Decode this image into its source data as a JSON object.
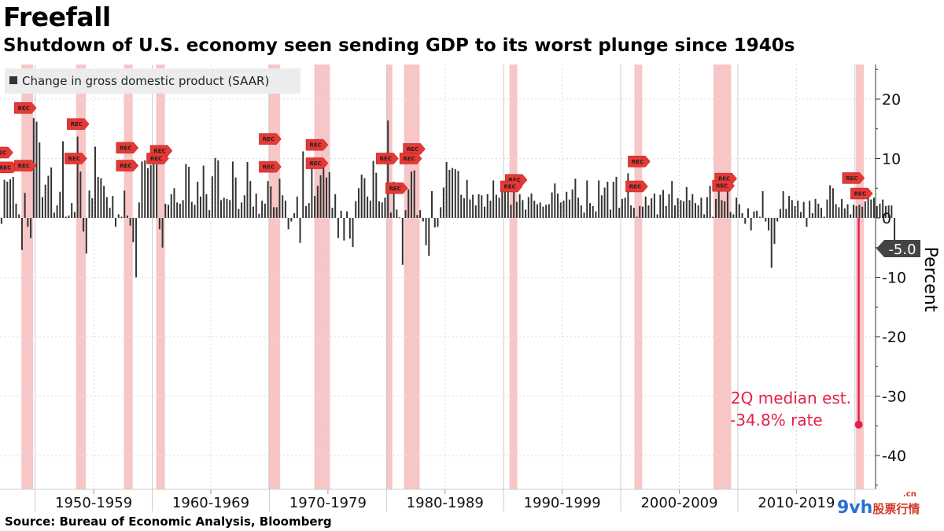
{
  "header": {
    "title": "Freefall",
    "subtitle": "Shutdown of U.S. economy seen sending GDP to its worst plunge since 1940s"
  },
  "footer": {
    "source": "Source: Bureau of Economic Analysis, Bloomberg"
  },
  "watermark": {
    "main": "9vh",
    "sub": "股票行情",
    "tld": ".cn"
  },
  "chart_data": {
    "type": "bar",
    "title": "Freefall",
    "subtitle": "Shutdown of U.S. economy seen sending GDP to its worst plunge since 1940s",
    "legend": "Change in gross domestic product (SAAR)",
    "legend_position": "top-left",
    "ylabel": "Percent",
    "ylim": [
      -45,
      26
    ],
    "yticks": [
      20,
      10,
      0,
      -10,
      -20,
      -30,
      -40
    ],
    "ytick_labels": [
      "20",
      "10",
      "0",
      "-10",
      "-20",
      "-30",
      "-40"
    ],
    "x_start": 1947.0,
    "x_end": 2020.75,
    "decade_labels": [
      "1950-1959",
      "1960-1969",
      "1970-1979",
      "1980-1989",
      "1990-1999",
      "2000-2009",
      "2010-2019"
    ],
    "decade_bounds": [
      1950,
      1960,
      1970,
      1980,
      1990,
      2000,
      2010,
      2020
    ],
    "series": [
      {
        "name": "Change in gross domestic product (SAAR)",
        "color": "#333333",
        "quarter_step": 0.25,
        "start": 1947.0,
        "values": [
          -1.0,
          6.4,
          6.1,
          6.5,
          6.9,
          2.4,
          0.6,
          -5.4,
          4.2,
          -1.5,
          -3.4,
          16.8,
          16.2,
          12.7,
          3.5,
          5.6,
          7.1,
          8.5,
          0.9,
          2.1,
          4.4,
          12.9,
          0.2,
          0.4,
          2.5,
          1.0,
          13.7,
          7.8,
          -2.3,
          -6.0,
          4.6,
          3.3,
          12.0,
          6.9,
          6.7,
          5.4,
          3.5,
          1.7,
          3.7,
          -1.5,
          0.6,
          0.2,
          4.6,
          0.4,
          -1.3,
          -4.1,
          -10.0,
          2.6,
          9.5,
          9.7,
          8.4,
          8.9,
          10.2,
          9.0,
          -1.9,
          -5.0,
          2.4,
          2.2,
          4.0,
          5.0,
          2.6,
          2.4,
          3.0,
          9.1,
          8.6,
          2.7,
          2.2,
          6.1,
          3.6,
          8.8,
          4.0,
          1.3,
          7.0,
          10.1,
          9.7,
          3.0,
          3.4,
          3.2,
          3.0,
          9.5,
          6.8,
          1.5,
          2.6,
          3.8,
          9.4,
          6.2,
          1.9,
          4.1,
          0.7,
          2.9,
          2.4,
          6.2,
          5.3,
          1.8,
          1.8,
          6.6,
          3.8,
          2.9,
          -1.9,
          -0.6,
          0.8,
          3.6,
          -4.2,
          11.2,
          2.0,
          2.5,
          10.1,
          3.7,
          5.4,
          7.2,
          9.9,
          6.8,
          7.7,
          1.7,
          4.0,
          -3.4,
          1.2,
          -3.8,
          1.1,
          -3.5,
          -4.9,
          2.8,
          5.0,
          7.3,
          6.7,
          3.6,
          2.9,
          9.6,
          7.6,
          2.8,
          2.6,
          3.4,
          16.4,
          0.9,
          6.1,
          1.4,
          0.1,
          -7.9,
          1.3,
          4.8,
          7.8,
          8.0,
          0.5,
          1.3,
          -0.6,
          -4.6,
          -6.4,
          4.5,
          -1.6,
          -1.5,
          1.8,
          5.1,
          9.4,
          8.1,
          8.4,
          8.2,
          7.9,
          3.9,
          3.3,
          6.4,
          3.1,
          3.9,
          2.1,
          4.0,
          3.8,
          1.9,
          4.0,
          2.9,
          6.3,
          3.9,
          3.4,
          4.4,
          5.4,
          4.5,
          2.2,
          5.3,
          2.7,
          4.0,
          3.0,
          1.4,
          3.5,
          4.1,
          2.9,
          2.3,
          2.6,
          1.9,
          2.2,
          2.3,
          4.3,
          5.8,
          4.1,
          2.6,
          2.9,
          4.4,
          3.1,
          4.8,
          6.6,
          3.4,
          2.1,
          0.9,
          6.3,
          2.5,
          2.0,
          1.1,
          6.3,
          3.8,
          5.1,
          6.1,
          1.4,
          6.1,
          6.9,
          1.7,
          3.2,
          3.4,
          7.5,
          2.1,
          1.7,
          0.2,
          2.0,
          1.9,
          3.6,
          2.1,
          3.3,
          4.1,
          0.6,
          3.9,
          4.7,
          2.0,
          4.0,
          6.2,
          2.1,
          3.3,
          3.0,
          2.8,
          5.2,
          3.0,
          4.0,
          2.5,
          2.1,
          3.4,
          0.6,
          3.5,
          5.4,
          0.2,
          3.2,
          6.2,
          3.0,
          2.8,
          7.3,
          1.0,
          0.6,
          3.4,
          2.3,
          0.8,
          -1.0,
          1.6,
          -2.1,
          1.1,
          1.2,
          0.2,
          4.5,
          -0.6,
          -2.1,
          -8.4,
          -4.4,
          -0.6,
          1.5,
          4.5,
          1.5,
          3.7,
          3.0,
          2.0,
          2.9,
          1.0,
          2.7,
          -1.5,
          2.9,
          0.8,
          3.2,
          2.4,
          1.7,
          0.2,
          3.1,
          5.5,
          5.0,
          2.3,
          1.8,
          3.2,
          1.6,
          2.3,
          0.6,
          2.2,
          2.0,
          2.2,
          1.9,
          2.8,
          3.5,
          3.1,
          3.4,
          2.0,
          2.4,
          3.1,
          2.0,
          2.1,
          2.1,
          -5.0
        ]
      },
      {
        "name": "2Q median est.",
        "color": "#e4204a",
        "x": 2020.25,
        "value": -34.8
      }
    ],
    "last_value_label": "-5.0",
    "recessions": [
      [
        1948.83,
        1949.83
      ],
      [
        1953.5,
        1954.33
      ],
      [
        1957.58,
        1958.33
      ],
      [
        1960.33,
        1961.08
      ],
      [
        1969.92,
        1970.92
      ],
      [
        1973.83,
        1975.17
      ],
      [
        1980.0,
        1980.5
      ],
      [
        1981.5,
        1982.83
      ],
      [
        1990.5,
        1991.17
      ],
      [
        2001.17,
        2001.83
      ],
      [
        2007.92,
        2009.42
      ],
      [
        2020.08,
        2020.75
      ]
    ],
    "recession_label": "REC",
    "recession_markers": [
      {
        "x": 1946.9,
        "y": 11
      },
      {
        "x": 1947.3,
        "y": 8.5
      },
      {
        "x": 1948.9,
        "y": 18.5
      },
      {
        "x": 1948.9,
        "y": 8.8
      },
      {
        "x": 1953.4,
        "y": 15.8
      },
      {
        "x": 1953.2,
        "y": 10.0
      },
      {
        "x": 1957.6,
        "y": 11.8
      },
      {
        "x": 1957.6,
        "y": 8.8
      },
      {
        "x": 1960.5,
        "y": 11.3
      },
      {
        "x": 1960.2,
        "y": 10.0
      },
      {
        "x": 1969.8,
        "y": 13.3
      },
      {
        "x": 1969.8,
        "y": 8.6
      },
      {
        "x": 1973.8,
        "y": 12.3
      },
      {
        "x": 1973.8,
        "y": 9.2
      },
      {
        "x": 1979.8,
        "y": 10.0
      },
      {
        "x": 1980.6,
        "y": 5.0
      },
      {
        "x": 1982.1,
        "y": 11.6
      },
      {
        "x": 1981.8,
        "y": 10.0
      },
      {
        "x": 1990.8,
        "y": 6.4
      },
      {
        "x": 1990.4,
        "y": 5.3
      },
      {
        "x": 2001.3,
        "y": 9.5
      },
      {
        "x": 2001.1,
        "y": 5.3
      },
      {
        "x": 2008.7,
        "y": 6.6
      },
      {
        "x": 2008.5,
        "y": 5.4
      },
      {
        "x": 2019.6,
        "y": 6.7
      },
      {
        "x": 2020.3,
        "y": 4.1
      }
    ],
    "annotation": {
      "line1": "2Q median est.",
      "line2": "-34.8% rate",
      "color": "#e4204a"
    }
  }
}
